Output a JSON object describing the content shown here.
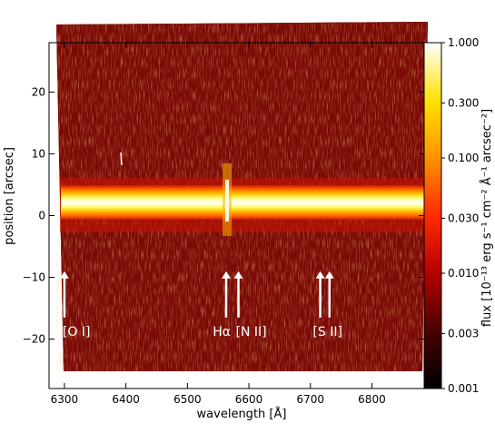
{
  "chart_data": {
    "type": "heatmap",
    "title": "",
    "xlabel": "wavelength [Å]",
    "ylabel": "position [arcsec]",
    "xlim": [
      6275,
      6885
    ],
    "ylim": [
      -28,
      28
    ],
    "x_ticks": [
      6300,
      6400,
      6500,
      6600,
      6700,
      6800
    ],
    "y_ticks": [
      20,
      10,
      0,
      -10,
      -20
    ],
    "colorbar": {
      "label": "flux [10⁻¹³ erg s⁻¹ cm⁻² Å⁻¹ arcsec⁻²]",
      "scale": "log",
      "range": [
        0.001,
        1.0
      ],
      "ticks": [
        "1.000",
        "0.300",
        "0.100",
        "0.030",
        "0.010",
        "0.003",
        "0.001"
      ],
      "tick_values": [
        1.0,
        0.3,
        0.1,
        0.03,
        0.01,
        0.003,
        0.001
      ],
      "colormap": "hot"
    },
    "continuum_position": 0,
    "emission_lines": [
      {
        "label": "[O I]",
        "wavelengths": [
          6300
        ]
      },
      {
        "label": "Hα",
        "wavelengths": [
          6563
        ]
      },
      {
        "label": "[N II]",
        "wavelengths": [
          6583
        ]
      },
      {
        "label": "[S II]",
        "wavelengths": [
          6716,
          6731
        ]
      }
    ]
  }
}
